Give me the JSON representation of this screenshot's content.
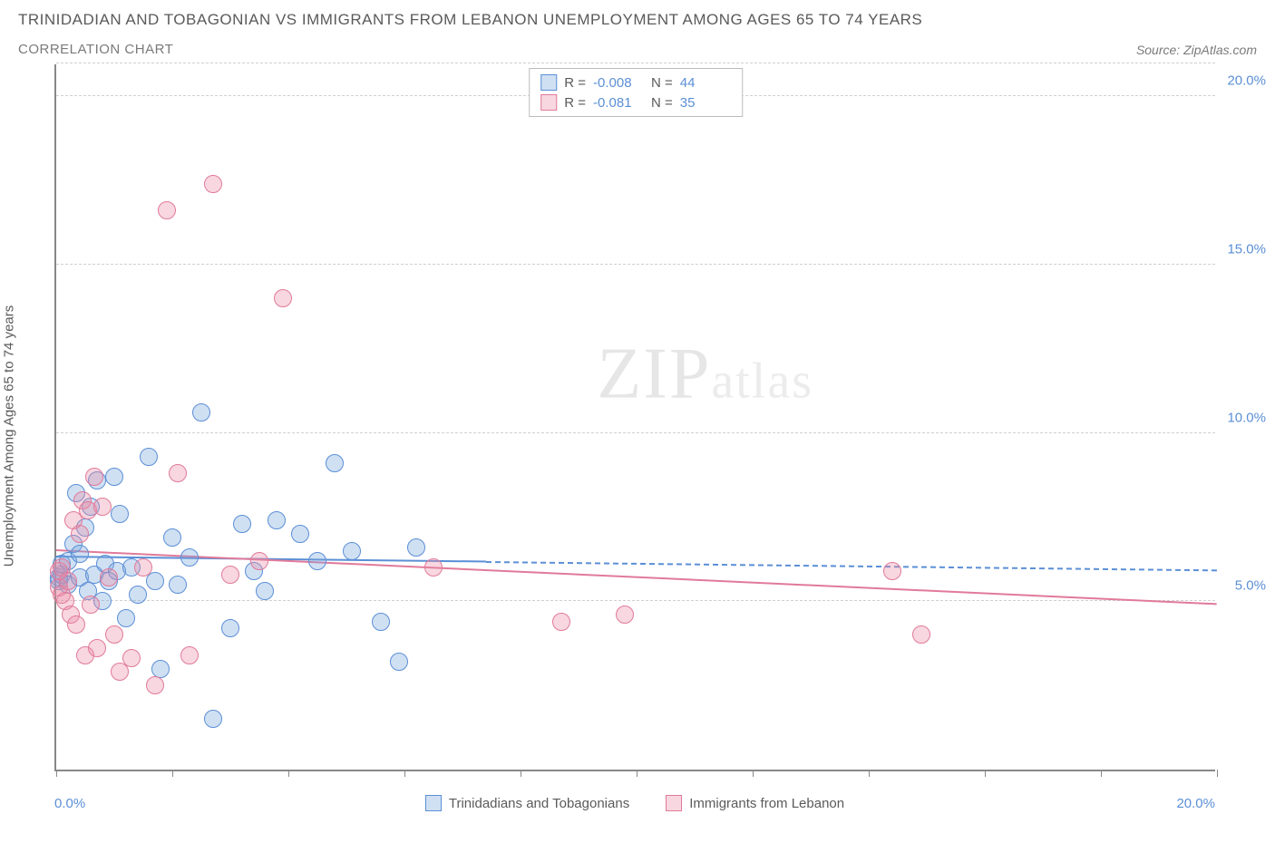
{
  "title": "TRINIDADIAN AND TOBAGONIAN VS IMMIGRANTS FROM LEBANON UNEMPLOYMENT AMONG AGES 65 TO 74 YEARS",
  "subtitle": "CORRELATION CHART",
  "source_prefix": "Source: ",
  "source_name": "ZipAtlas.com",
  "y_label": "Unemployment Among Ages 65 to 74 years",
  "watermark_a": "ZIP",
  "watermark_b": "atlas",
  "chart": {
    "xlim": [
      0,
      20
    ],
    "ylim": [
      0,
      21
    ],
    "y_ticks": [
      5,
      10,
      15,
      20
    ],
    "y_tick_labels": [
      "5.0%",
      "10.0%",
      "15.0%",
      "20.0%"
    ],
    "x_ticks": [
      0,
      2,
      4,
      6,
      8,
      10,
      12,
      14,
      16,
      18,
      20
    ],
    "x_min_label": "0.0%",
    "x_max_label": "20.0%",
    "marker_radius": 10,
    "series": [
      {
        "name": "Trinidadians and Tobagonians",
        "fill": "rgba(120,165,220,0.35)",
        "stroke": "#5b8fd6",
        "r_value": "-0.008",
        "n_value": "44",
        "trend": {
          "x1": 0,
          "y1": 6.3,
          "x2": 20,
          "y2": 5.9,
          "solid_until_x": 7.4
        },
        "points": [
          [
            0.05,
            5.7
          ],
          [
            0.05,
            5.6
          ],
          [
            0.1,
            5.8
          ],
          [
            0.1,
            6.1
          ],
          [
            0.2,
            5.5
          ],
          [
            0.2,
            6.2
          ],
          [
            0.3,
            6.7
          ],
          [
            0.35,
            8.2
          ],
          [
            0.4,
            5.7
          ],
          [
            0.4,
            6.4
          ],
          [
            0.5,
            7.2
          ],
          [
            0.55,
            5.3
          ],
          [
            0.6,
            7.8
          ],
          [
            0.65,
            5.8
          ],
          [
            0.7,
            8.6
          ],
          [
            0.8,
            5.0
          ],
          [
            0.85,
            6.1
          ],
          [
            0.9,
            5.6
          ],
          [
            1.0,
            8.7
          ],
          [
            1.05,
            5.9
          ],
          [
            1.1,
            7.6
          ],
          [
            1.2,
            4.5
          ],
          [
            1.3,
            6.0
          ],
          [
            1.4,
            5.2
          ],
          [
            1.6,
            9.3
          ],
          [
            1.7,
            5.6
          ],
          [
            1.8,
            3.0
          ],
          [
            2.0,
            6.9
          ],
          [
            2.1,
            5.5
          ],
          [
            2.3,
            6.3
          ],
          [
            2.5,
            10.6
          ],
          [
            2.7,
            1.5
          ],
          [
            3.0,
            4.2
          ],
          [
            3.2,
            7.3
          ],
          [
            3.4,
            5.9
          ],
          [
            3.6,
            5.3
          ],
          [
            3.8,
            7.4
          ],
          [
            4.2,
            7.0
          ],
          [
            4.5,
            6.2
          ],
          [
            4.8,
            9.1
          ],
          [
            5.1,
            6.5
          ],
          [
            5.6,
            4.4
          ],
          [
            5.9,
            3.2
          ],
          [
            6.2,
            6.6
          ]
        ]
      },
      {
        "name": "Immigrants from Lebanon",
        "fill": "rgba(235,140,165,0.35)",
        "stroke": "#e17a9a",
        "r_value": "-0.081",
        "n_value": "35",
        "trend": {
          "x1": 0,
          "y1": 6.5,
          "x2": 20,
          "y2": 4.9,
          "solid_until_x": 20
        },
        "points": [
          [
            0.05,
            5.4
          ],
          [
            0.05,
            5.9
          ],
          [
            0.1,
            5.2
          ],
          [
            0.1,
            6.0
          ],
          [
            0.15,
            5.0
          ],
          [
            0.2,
            5.6
          ],
          [
            0.25,
            4.6
          ],
          [
            0.3,
            7.4
          ],
          [
            0.35,
            4.3
          ],
          [
            0.4,
            7.0
          ],
          [
            0.45,
            8.0
          ],
          [
            0.5,
            3.4
          ],
          [
            0.55,
            7.7
          ],
          [
            0.6,
            4.9
          ],
          [
            0.65,
            8.7
          ],
          [
            0.7,
            3.6
          ],
          [
            0.8,
            7.8
          ],
          [
            0.9,
            5.7
          ],
          [
            1.0,
            4.0
          ],
          [
            1.1,
            2.9
          ],
          [
            1.3,
            3.3
          ],
          [
            1.5,
            6.0
          ],
          [
            1.7,
            2.5
          ],
          [
            1.9,
            16.6
          ],
          [
            2.1,
            8.8
          ],
          [
            2.3,
            3.4
          ],
          [
            2.7,
            17.4
          ],
          [
            3.0,
            5.8
          ],
          [
            3.5,
            6.2
          ],
          [
            3.9,
            14.0
          ],
          [
            8.7,
            4.4
          ],
          [
            9.8,
            4.6
          ],
          [
            14.4,
            5.9
          ],
          [
            14.9,
            4.0
          ],
          [
            6.5,
            6.0
          ]
        ]
      }
    ]
  }
}
